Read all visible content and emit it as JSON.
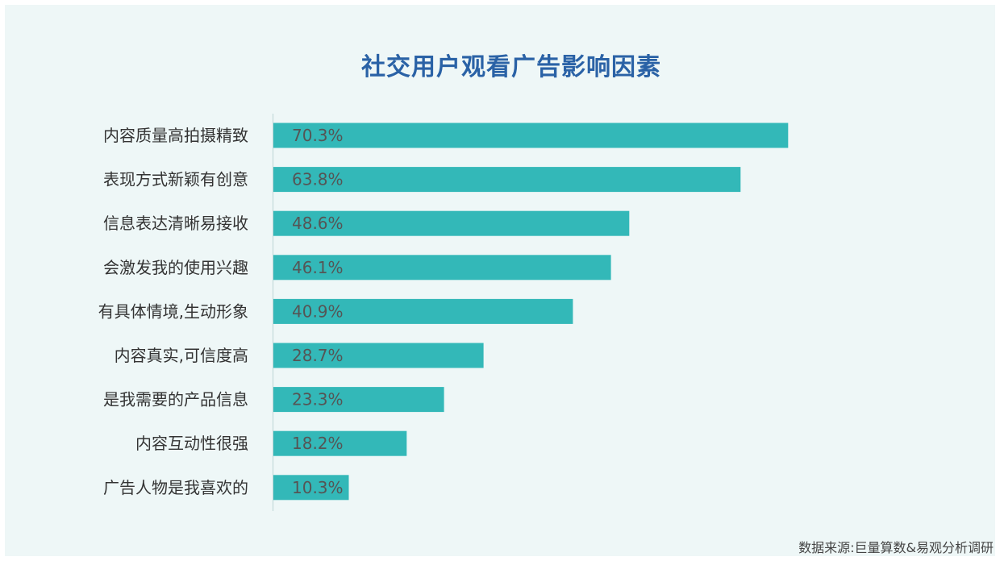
{
  "title": "社交用户观看广告影响因素",
  "source": "数据来源:巨量算数&易观分析调研",
  "colors": {
    "bar": "#33b8b8",
    "title": "#2a62a6",
    "background": "#eef7f7"
  },
  "chart_data": {
    "type": "bar",
    "orientation": "horizontal",
    "title": "社交用户观看广告影响因素",
    "categories": [
      "内容质量高拍摄精致",
      "表现方式新颖有创意",
      "信息表达清晰易接收",
      "会激发我的使用兴趣",
      "有具体情境,生动形象",
      "内容真实,可信度高",
      "是我需要的产品信息",
      "内容互动性很强",
      "广告人物是我喜欢的"
    ],
    "values": [
      70.3,
      63.8,
      48.6,
      46.1,
      40.9,
      28.7,
      23.3,
      18.2,
      10.3
    ],
    "value_labels": [
      "70.3%",
      "63.8%",
      "48.6%",
      "46.1%",
      "40.9%",
      "28.7%",
      "23.3%",
      "18.2%",
      "10.3%"
    ],
    "xlim": [
      0,
      100
    ],
    "unit": "%",
    "grid": false,
    "legend": "none"
  }
}
